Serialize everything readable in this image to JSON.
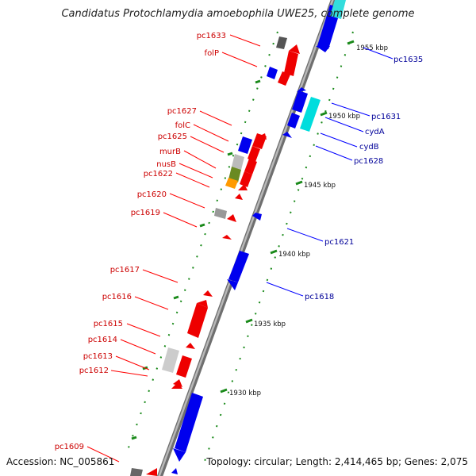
{
  "title": "Candidatus Protochlamydia amoebophila UWE25, complete genome",
  "accession": "Accession: NC_005861",
  "summary": "Topology: circular; Length: 2,414,465 bp; Genes: 2,075",
  "colors": {
    "forward": "#ff0000",
    "reverse": "#0000ff",
    "backbone": "#888888",
    "tick": "#1a8a1a",
    "forward_label": "#cc0000",
    "reverse_label": "#000099"
  },
  "scale_labels": [
    "1955 kbp",
    "1950 kbp",
    "1945 kbp",
    "1940 kbp",
    "1935 kbp",
    "1930 kbp"
  ],
  "left_gene_labels": [
    "pc1633",
    "folP",
    "pc1627",
    "folC",
    "pc1625",
    "murB",
    "nusB",
    "pc1622",
    "pc1620",
    "pc1619",
    "pc1617",
    "pc1616",
    "pc1615",
    "pc1614",
    "pc1613",
    "pc1612",
    "pc1609"
  ],
  "right_gene_labels": [
    "pc1635",
    "pc1631",
    "cydA",
    "cydB",
    "pc1628",
    "pc1621",
    "pc1618"
  ]
}
